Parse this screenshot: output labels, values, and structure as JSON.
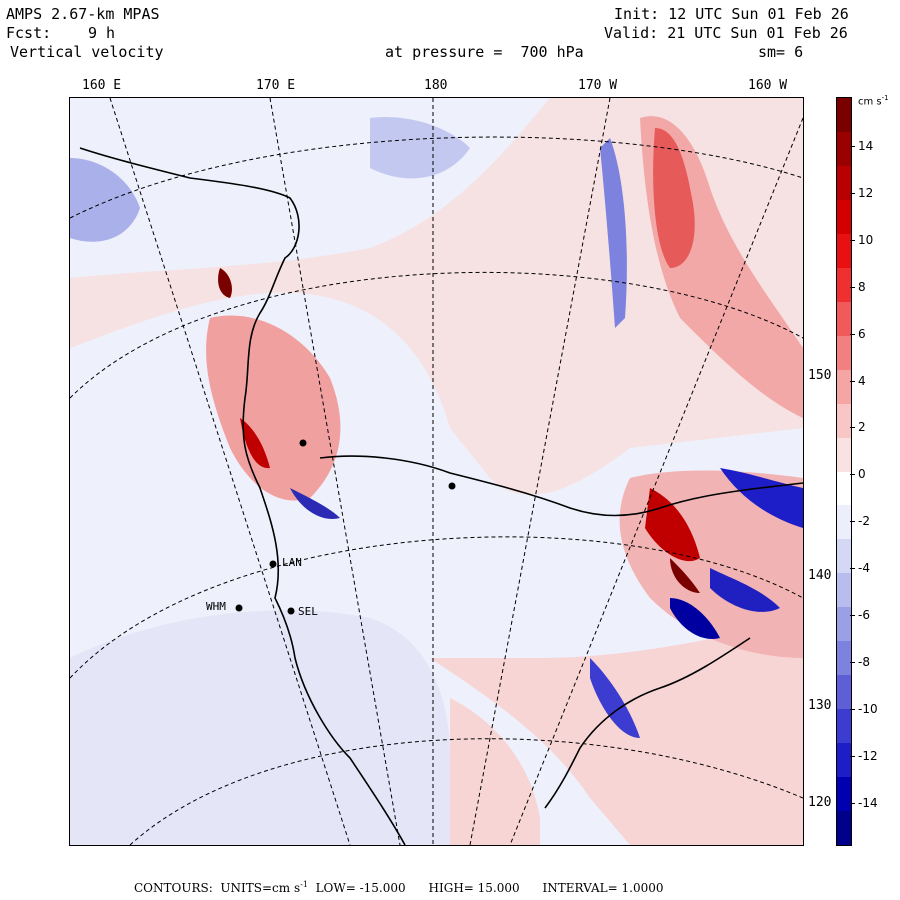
{
  "header": {
    "model": "AMPS 2.67-km MPAS",
    "fcst_label": "Fcst:",
    "fcst_value": "9 h",
    "field": "Vertical velocity",
    "init": "Init: 12 UTC Sun 01 Feb 26",
    "valid": "Valid: 21 UTC Sun 01 Feb 26",
    "level": "at pressure =  700 hPa",
    "smoothing": "sm= 6"
  },
  "longitude_labels": [
    "160 E",
    "170 E",
    "180",
    "170 W",
    "160 W"
  ],
  "latitude_labels": [
    "150 W",
    "140 W",
    "130 W",
    "120 W"
  ],
  "stations": [
    "LAN",
    "WHM",
    "SEL"
  ],
  "colorbar": {
    "units": "cm s",
    "units_exp": "-1",
    "ticks": [
      "14",
      "12",
      "10",
      "8",
      "6",
      "4",
      "2",
      "0",
      "-2",
      "-4",
      "-6",
      "-8",
      "-10",
      "-12",
      "-14"
    ],
    "colors_top_to_bottom": [
      "#7a0000",
      "#9a0000",
      "#b80000",
      "#d40000",
      "#e81010",
      "#f03030",
      "#f05a5a",
      "#f38080",
      "#f6a5a5",
      "#f9c6c6",
      "#fbe2e2",
      "#ffffff",
      "#eceefb",
      "#d4d8f4",
      "#b8bdee",
      "#9aa0e6",
      "#7c82de",
      "#5e5fd6",
      "#3c3cd0",
      "#1e1ec8",
      "#0000b0",
      "#00008a"
    ]
  },
  "footer": {
    "contours": "CONTOURS:",
    "units_label": "UNITS=cm s",
    "units_exp": "-1",
    "low": "LOW= -15.000",
    "high": "HIGH= 15.000",
    "interval": "INTERVAL= 1.0000"
  }
}
